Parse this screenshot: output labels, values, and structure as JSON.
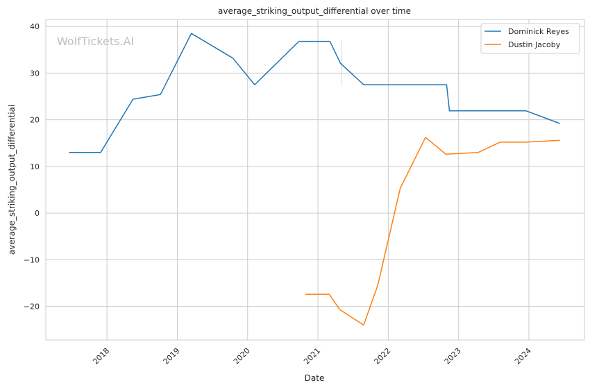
{
  "chart_data": {
    "type": "line",
    "title": "average_striking_output_differential over time",
    "xlabel": "Date",
    "ylabel": "average_striking_output_differential",
    "xlim": [
      2017.13,
      2024.79
    ],
    "ylim": [
      -27.2,
      41.5
    ],
    "xticks": [
      2018,
      2019,
      2020,
      2021,
      2022,
      2023,
      2024
    ],
    "xtick_labels": [
      "2018",
      "2019",
      "2020",
      "2021",
      "2022",
      "2023",
      "2024"
    ],
    "yticks": [
      -20,
      -10,
      0,
      10,
      20,
      30,
      40
    ],
    "ytick_labels": [
      "−20",
      "−10",
      "0",
      "10",
      "20",
      "30",
      "40"
    ],
    "grid": true,
    "legend_position": "top-right",
    "watermark": "WolfTickets.AI",
    "series": [
      {
        "name": "Dominick Reyes",
        "color": "#1f77b4",
        "x": [
          2017.46,
          2017.91,
          2018.37,
          2018.76,
          2019.2,
          2019.79,
          2020.1,
          2020.73,
          2021.17,
          2021.32,
          2021.65,
          2022.83,
          2022.87,
          2023.96,
          2024.44
        ],
        "y": [
          13.0,
          13.0,
          24.4,
          25.4,
          38.5,
          33.2,
          27.5,
          36.8,
          36.8,
          32.1,
          27.5,
          27.5,
          21.9,
          21.9,
          19.2
        ],
        "error_band": {
          "x": 2021.34,
          "low": 27.4,
          "high": 36.9
        }
      },
      {
        "name": "Dustin Jacoby",
        "color": "#ff7f0e",
        "x": [
          2020.82,
          2021.16,
          2021.31,
          2021.65,
          2021.85,
          2022.17,
          2022.53,
          2022.82,
          2023.28,
          2023.59,
          2023.96,
          2024.44
        ],
        "y": [
          -17.4,
          -17.4,
          -20.7,
          -24.0,
          -15.5,
          5.3,
          16.2,
          12.6,
          13.0,
          15.2,
          15.2,
          15.6
        ]
      }
    ]
  }
}
